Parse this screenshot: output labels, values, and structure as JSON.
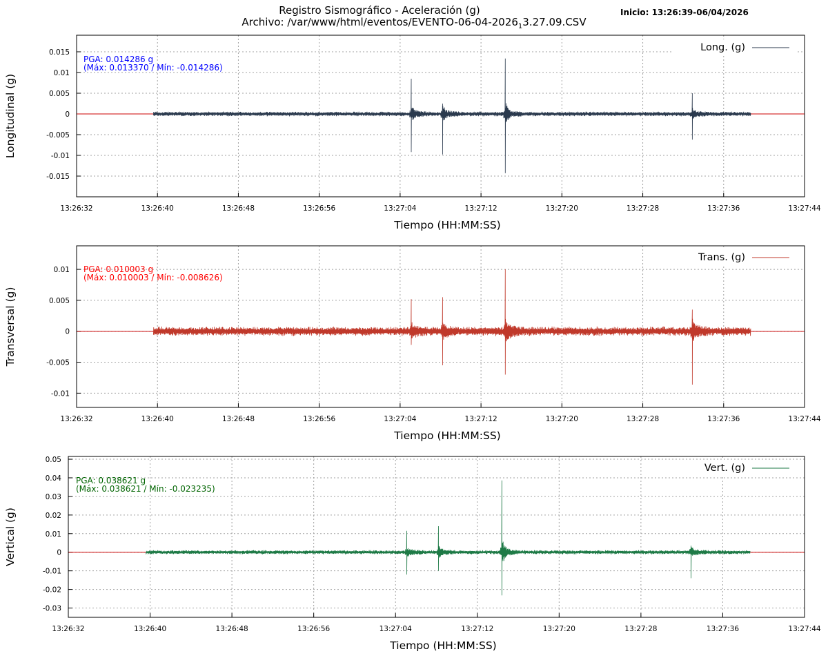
{
  "header": {
    "title": "Registro Sismográfico - Aceleración (g)",
    "file_prefix": "Archivo: /var/www/html/eventos/EVENTO-06-04-2026",
    "file_subscript": "1",
    "file_suffix": "3.27.09.CSV",
    "start": "Inicio: 13:26:39-06/04/2026"
  },
  "chart_data": [
    {
      "type": "line",
      "title": "",
      "xlabel": "Tiempo (HH:MM:SS)",
      "ylabel": "Longitudinal (g)",
      "xlim": [
        "13:26:32",
        "13:27:44"
      ],
      "ylim": [
        -0.02,
        0.019
      ],
      "x_ticks": [
        "13:26:32",
        "13:26:40",
        "13:26:48",
        "13:26:56",
        "13:27:04",
        "13:27:12",
        "13:27:20",
        "13:27:28",
        "13:27:36",
        "13:27:44"
      ],
      "y_ticks": [
        "0.015",
        "0.01",
        "0.005",
        "0",
        "-0.005",
        "-0.01",
        "-0.015"
      ],
      "grid": true,
      "legend": "top-right",
      "series": [
        {
          "name": "Long. (g)",
          "color": "#2b3a4e",
          "x_range": [
            "13:26:39",
            "13:27:39"
          ],
          "baseline_amplitude": 0.0006,
          "spikes": [
            {
              "x": "13:27:05.1",
              "max": 0.0085,
              "min": -0.0092
            },
            {
              "x": "13:27:08.2",
              "max": 0.0025,
              "min": -0.0098
            },
            {
              "x": "13:27:14.4",
              "max": 0.01337,
              "min": -0.014286
            },
            {
              "x": "13:27:32.9",
              "max": 0.005,
              "min": -0.0062
            }
          ]
        }
      ],
      "annotation": {
        "pga": "PGA: 0.014286 g",
        "range": "(Máx: 0.013370 / Mín: -0.014286)",
        "color": "#0000ff"
      },
      "zero_line_color": "#cc0000"
    },
    {
      "type": "line",
      "title": "",
      "xlabel": "Tiempo (HH:MM:SS)",
      "ylabel": "Transversal (g)",
      "xlim": [
        "13:26:32",
        "13:27:44"
      ],
      "ylim": [
        -0.0123,
        0.0138
      ],
      "x_ticks": [
        "13:26:32",
        "13:26:40",
        "13:26:48",
        "13:26:56",
        "13:27:04",
        "13:27:12",
        "13:27:20",
        "13:27:28",
        "13:27:36",
        "13:27:44"
      ],
      "y_ticks": [
        "0.01",
        "0.005",
        "0",
        "-0.005",
        "-0.01"
      ],
      "grid": true,
      "legend": "top-right",
      "series": [
        {
          "name": "Trans. (g)",
          "color": "#c0392b",
          "x_range": [
            "13:26:39",
            "13:27:39"
          ],
          "baseline_amplitude": 0.0008,
          "spikes": [
            {
              "x": "13:27:05.1",
              "max": 0.0052,
              "min": -0.0022
            },
            {
              "x": "13:27:08.2",
              "max": 0.0055,
              "min": -0.0055
            },
            {
              "x": "13:27:14.4",
              "max": 0.010003,
              "min": -0.007
            },
            {
              "x": "13:27:32.9",
              "max": 0.0035,
              "min": -0.008626
            }
          ]
        }
      ],
      "annotation": {
        "pga": "PGA: 0.010003 g",
        "range": "(Máx: 0.010003 / Mín: -0.008626)",
        "color": "#ff0000"
      },
      "zero_line_color": "#cc0000"
    },
    {
      "type": "line",
      "title": "",
      "xlabel": "Tiempo (HH:MM:SS)",
      "ylabel": "Vertical (g)",
      "xlim": [
        "13:26:32",
        "13:27:44"
      ],
      "ylim": [
        -0.035,
        0.0515
      ],
      "x_ticks": [
        "13:26:32",
        "13:26:40",
        "13:26:48",
        "13:26:56",
        "13:27:04",
        "13:27:12",
        "13:27:20",
        "13:27:28",
        "13:27:36",
        "13:27:44"
      ],
      "y_ticks": [
        "0.05",
        "0.04",
        "0.03",
        "0.02",
        "0.01",
        "0",
        "-0.01",
        "-0.02",
        "-0.03"
      ],
      "grid": true,
      "legend": "top-right",
      "series": [
        {
          "name": "Vert. (g)",
          "color": "#1e7a46",
          "x_range": [
            "13:26:39",
            "13:27:39"
          ],
          "baseline_amplitude": 0.0012,
          "spikes": [
            {
              "x": "13:27:05.1",
              "max": 0.0115,
              "min": -0.012
            },
            {
              "x": "13:27:08.2",
              "max": 0.014,
              "min": -0.01
            },
            {
              "x": "13:27:14.4",
              "max": 0.038621,
              "min": -0.023235
            },
            {
              "x": "13:27:32.9",
              "max": 0.0035,
              "min": -0.014
            }
          ]
        }
      ],
      "annotation": {
        "pga": "PGA: 0.038621 g",
        "range": "(Máx: 0.038621 / Mín: -0.023235)",
        "color": "#006400"
      },
      "zero_line_color": "#cc0000"
    }
  ]
}
